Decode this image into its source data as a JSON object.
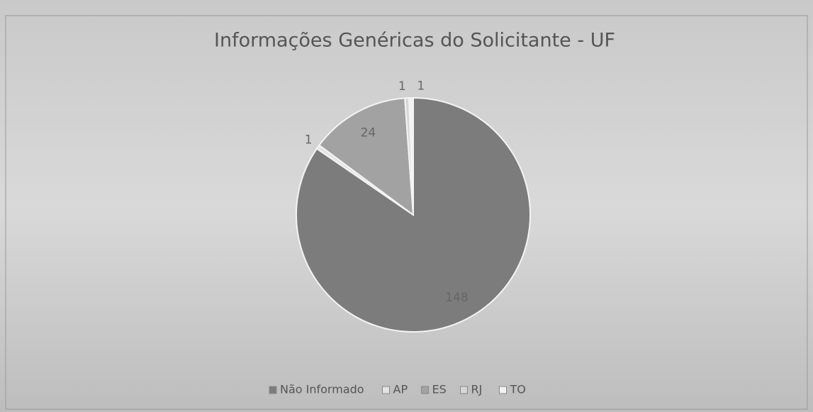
{
  "chart_data": {
    "type": "pie",
    "title": "Informações Genéricas do Solicitante - UF",
    "categories": [
      "Não Informado",
      "AP",
      "ES",
      "RJ",
      "TO"
    ],
    "values": [
      148,
      1,
      24,
      1,
      1
    ],
    "colors": [
      "#7c7c7c",
      "#e4e4e4",
      "#a2a2a2",
      "#d6d6d6",
      "#f2f2f2"
    ],
    "legend": "bottom"
  }
}
